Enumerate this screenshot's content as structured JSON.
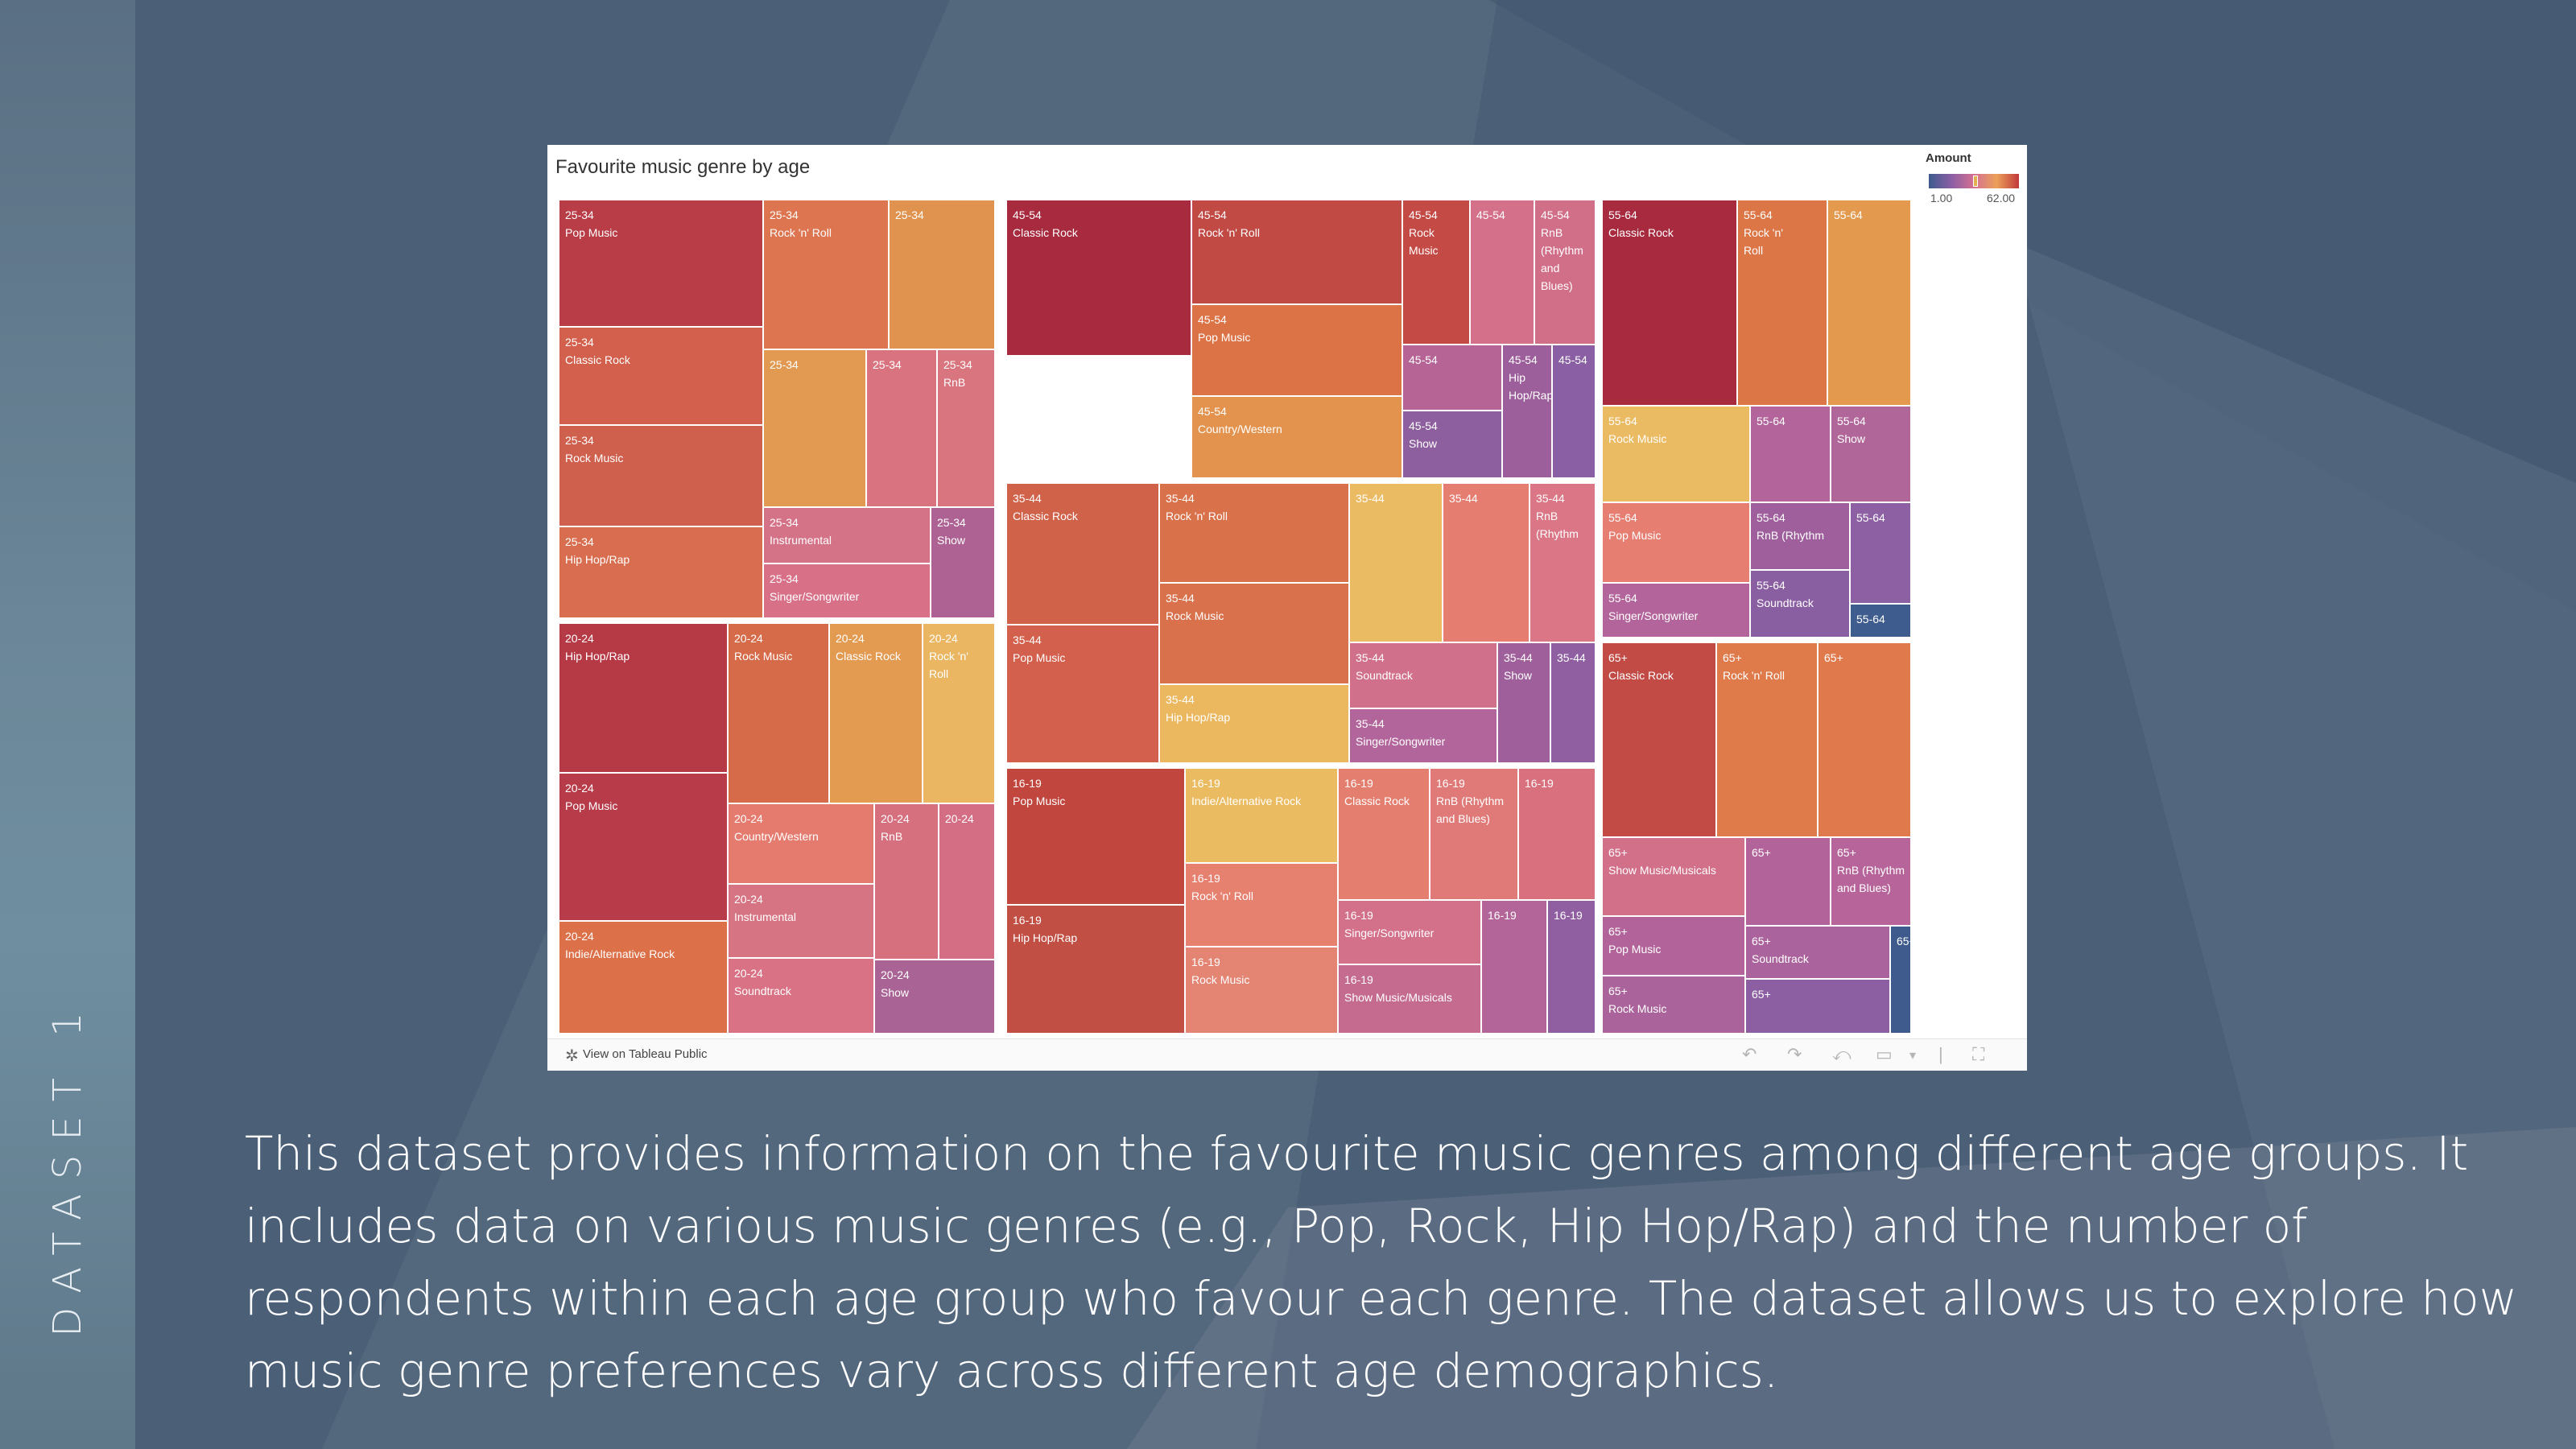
{
  "side_label": "DATASET 1",
  "description": "This dataset provides information on the favourite music genres among different age groups. It includes data on various music genres (e.g., Pop, Rock, Hip Hop/Rap) and the number of respondents within each age group who favour each genre. The dataset allows us to explore how music genre preferences vary across different age demographics.",
  "embed": {
    "footer_link": "View on Tableau Public",
    "icons": [
      "tableau-logo-icon",
      "undo-icon",
      "redo-icon",
      "revert-icon",
      "share-icon",
      "dropdown-icon",
      "fullscreen-icon"
    ]
  },
  "chart_data": {
    "type": "treemap",
    "title": "Favourite music genre by age",
    "legend": {
      "title": "Amount",
      "min": "1.00",
      "max": "62.00",
      "colors": [
        "#3d5b8e",
        "#8a5fa4",
        "#d46f93",
        "#eba05a",
        "#c23a3a"
      ]
    },
    "groups": [
      {
        "group": "25-34",
        "cells": [
          {
            "label": "Pop Music",
            "color": "#b93d46"
          },
          {
            "label": "Rock 'n' Roll",
            "color": "#dc7550"
          },
          {
            "label": "",
            "color": "#e0934f"
          },
          {
            "label": "Classic Rock",
            "color": "#d2604c"
          },
          {
            "label": "Rock Music",
            "color": "#d0604e"
          },
          {
            "label": "Hip Hop/Rap",
            "color": "#d86d4f"
          },
          {
            "label": "",
            "color": "#e29952"
          },
          {
            "label": "",
            "color": "#d97380"
          },
          {
            "label": "RnB",
            "color": "#d9757e"
          },
          {
            "label": "Instrumental",
            "color": "#d47287"
          },
          {
            "label": "Singer/Songwriter",
            "color": "#d87188"
          },
          {
            "label": "Show",
            "color": "#ad6293"
          }
        ]
      },
      {
        "group": "20-24",
        "cells": [
          {
            "label": "Hip Hop/Rap",
            "color": "#b63a46"
          },
          {
            "label": "Pop Music",
            "color": "#b73b48"
          },
          {
            "label": "Indie/Alternative Rock",
            "color": "#db7049"
          },
          {
            "label": "Rock Music",
            "color": "#d66b49"
          },
          {
            "label": "Classic Rock",
            "color": "#e39a51"
          },
          {
            "label": "Rock 'n' Roll",
            "color": "#eab662"
          },
          {
            "label": "Country/Western",
            "color": "#e47b6e"
          },
          {
            "label": "Instrumental",
            "color": "#d77484"
          },
          {
            "label": "Soundtrack",
            "color": "#d87284"
          },
          {
            "label": "RnB",
            "color": "#d6707f"
          },
          {
            "label": "",
            "color": "#d46e84"
          },
          {
            "label": "Show",
            "color": "#a96495"
          }
        ]
      },
      {
        "group": "45-54",
        "cells": [
          {
            "label": "Classic Rock",
            "color": "#a72a3f"
          },
          {
            "label": "Rock 'n' Roll",
            "color": "#c14a45"
          },
          {
            "label": "Rock Music",
            "color": "#c44a45"
          },
          {
            "label": "Pop Music",
            "color": "#dc7346"
          },
          {
            "label": "Country/Western",
            "color": "#e3934d"
          },
          {
            "label": "",
            "color": "#d4708a"
          },
          {
            "label": "RnB (Rhythm and Blues)",
            "color": "#d26f88"
          },
          {
            "label": "",
            "color": "#b56495"
          },
          {
            "label": "Hip Hop/Rap",
            "color": "#9d5f9b"
          },
          {
            "label": "",
            "color": "#8f5f9f"
          },
          {
            "label": "",
            "color": "#8a5fa3"
          },
          {
            "label": "Show",
            "color": "#8e5f9e"
          }
        ]
      },
      {
        "group": "35-44",
        "cells": [
          {
            "label": "Classic Rock",
            "color": "#d1624a"
          },
          {
            "label": "Pop Music",
            "color": "#d3604c"
          },
          {
            "label": "Rock 'n' Roll",
            "color": "#d9714b"
          },
          {
            "label": "Rock Music",
            "color": "#d8714c"
          },
          {
            "label": "Hip Hop/Rap",
            "color": "#ebb860"
          },
          {
            "label": "",
            "color": "#ebbb63"
          },
          {
            "label": "",
            "color": "#e57d70"
          },
          {
            "label": "RnB (Rhythm",
            "color": "#da7686"
          },
          {
            "label": "Soundtrack",
            "color": "#d1708b"
          },
          {
            "label": "Show",
            "color": "#9e5f9b"
          },
          {
            "label": "",
            "color": "#8f5fa1"
          },
          {
            "label": "Singer/Songwriter",
            "color": "#b2659b"
          }
        ]
      },
      {
        "group": "16-19",
        "cells": [
          {
            "label": "Pop Music",
            "color": "#c0463e"
          },
          {
            "label": "Hip Hop/Rap",
            "color": "#c24f44"
          },
          {
            "label": "Indie/Alternative Rock",
            "color": "#ebbb61"
          },
          {
            "label": "Rock 'n' Roll",
            "color": "#e6806f"
          },
          {
            "label": "Rock Music",
            "color": "#e48473"
          },
          {
            "label": "Classic Rock",
            "color": "#e47f70"
          },
          {
            "label": "RnB (Rhythm and Blues)",
            "color": "#e07a78"
          },
          {
            "label": "",
            "color": "#d9707e"
          },
          {
            "label": "Singer/Songwriter",
            "color": "#d3708a"
          },
          {
            "label": "",
            "color": "#b3659a"
          },
          {
            "label": "",
            "color": "#8f5fa2"
          },
          {
            "label": "Show Music/Musicals",
            "color": "#c46b8f"
          }
        ]
      },
      {
        "group": "55-64",
        "cells": [
          {
            "label": "Classic Rock",
            "color": "#a72a3f"
          },
          {
            "label": "Rock 'n' Roll",
            "color": "#dc7647"
          },
          {
            "label": "",
            "color": "#e39a4f"
          },
          {
            "label": "Rock Music",
            "color": "#ebbb63"
          },
          {
            "label": "",
            "color": "#b3659b"
          },
          {
            "label": "Show",
            "color": "#b1669a"
          },
          {
            "label": "Pop Music",
            "color": "#e67e72"
          },
          {
            "label": "RnB (Rhythm",
            "color": "#9e5f9c"
          },
          {
            "label": "",
            "color": "#8d60a3"
          },
          {
            "label": "Singer/Songwriter",
            "color": "#b3659b"
          },
          {
            "label": "Soundtrack",
            "color": "#8a5fa2"
          },
          {
            "label": "",
            "color": "#3e5c8d"
          }
        ]
      },
      {
        "group": "65+",
        "cells": [
          {
            "label": "Classic Rock",
            "color": "#c24b45"
          },
          {
            "label": "Rock 'n' Roll",
            "color": "#df7a4b"
          },
          {
            "label": "",
            "color": "#e07a4c"
          },
          {
            "label": "Show Music/Musicals",
            "color": "#d2708a"
          },
          {
            "label": "",
            "color": "#b2649a"
          },
          {
            "label": "RnB (Rhythm and Blues)",
            "color": "#b6649a"
          },
          {
            "label": "Pop Music",
            "color": "#b2649a"
          },
          {
            "label": "Soundtrack",
            "color": "#aa639c"
          },
          {
            "label": "Rock Music",
            "color": "#ab649b"
          },
          {
            "label": "",
            "color": "#8c5fa2"
          },
          {
            "label": "",
            "color": "#3f5b8e"
          }
        ]
      }
    ]
  }
}
